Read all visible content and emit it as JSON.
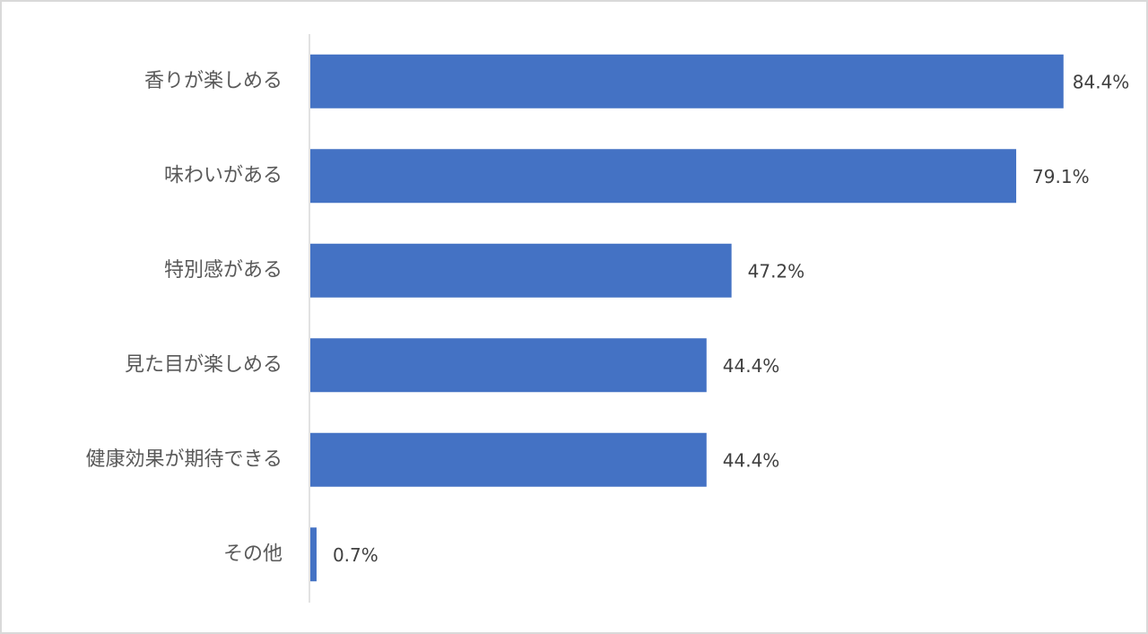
{
  "chart_data": {
    "type": "bar",
    "orientation": "horizontal",
    "categories": [
      "香りが楽しめる",
      "味わいがある",
      "特別感がある",
      "見た目が楽しめる",
      "健康効果が期待できる",
      "その他"
    ],
    "values": [
      84.4,
      79.1,
      47.2,
      44.4,
      44.4,
      0.7
    ],
    "value_labels": [
      "84.4%",
      "79.1%",
      "47.2%",
      "44.4%",
      "44.4%",
      "0.7%"
    ],
    "color": "#4472c4"
  }
}
